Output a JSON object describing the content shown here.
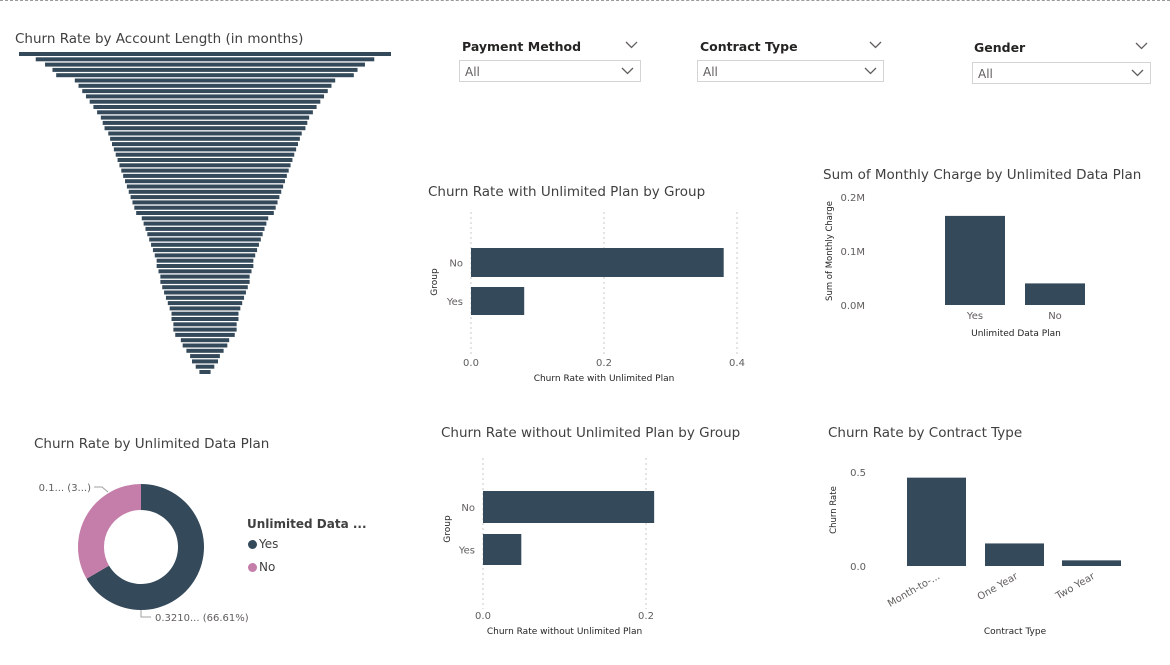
{
  "colors": {
    "bar": "#34495a",
    "yes": "#34495a",
    "no": "#c47ea9",
    "grid": "#c8c8c8",
    "axis_text": "#605e5c"
  },
  "filters": [
    {
      "title": "Payment Method",
      "value": "All"
    },
    {
      "title": "Contract Type",
      "value": "All"
    },
    {
      "title": "Gender",
      "value": "All"
    }
  ],
  "funnel": {
    "title": "Churn Rate by Account Length (in months)"
  },
  "chart_data": [
    {
      "id": "funnel",
      "type": "bar",
      "title": "Churn Rate by Account Length (in months)",
      "orientation": "horizontal-funnel",
      "values": [
        1.0,
        0.91,
        0.86,
        0.82,
        0.8,
        0.7,
        0.68,
        0.66,
        0.64,
        0.62,
        0.6,
        0.58,
        0.56,
        0.55,
        0.54,
        0.52,
        0.51,
        0.5,
        0.49,
        0.48,
        0.47,
        0.46,
        0.45,
        0.44,
        0.43,
        0.42,
        0.41,
        0.4,
        0.39,
        0.38,
        0.37,
        0.34,
        0.33,
        0.32,
        0.31,
        0.3,
        0.29,
        0.28,
        0.27,
        0.26,
        0.26,
        0.25,
        0.24,
        0.24,
        0.23,
        0.22,
        0.21,
        0.2,
        0.19,
        0.18,
        0.18,
        0.17,
        0.17,
        0.16,
        0.13,
        0.12,
        0.1,
        0.08,
        0.07,
        0.05,
        0.03
      ]
    },
    {
      "id": "unlimited",
      "type": "bar",
      "title": "Churn Rate with Unlimited Plan by Group",
      "orientation": "horizontal",
      "categories": [
        "No",
        "Yes"
      ],
      "values": [
        0.38,
        0.08
      ],
      "xlabel": "Churn Rate with Unlimited Plan",
      "ylabel": "Group",
      "xlim": [
        0,
        0.4
      ],
      "xticks": [
        "0.0",
        "0.2",
        "0.4"
      ],
      "grid": true
    },
    {
      "id": "monthly",
      "type": "bar",
      "title": "Sum of Monthly Charge by Unlimited Data Plan",
      "categories": [
        "Yes",
        "No"
      ],
      "values": [
        0.165,
        0.04
      ],
      "xlabel": "Unlimited Data Plan",
      "ylabel": "Sum of Monthly Charge",
      "ylim": [
        0,
        0.2
      ],
      "yticks": [
        "0.0M",
        "0.1M",
        "0.2M"
      ]
    },
    {
      "id": "donut",
      "type": "pie",
      "title": "Churn Rate by Unlimited Data Plan",
      "categories": [
        "Yes",
        "No"
      ],
      "values": [
        66.61,
        33.39
      ],
      "labels": [
        "0.3210... (66.61%)",
        "0.1... (3...)"
      ],
      "legend_title": "Unlimited Data ...",
      "legend": "right"
    },
    {
      "id": "without",
      "type": "bar",
      "title": "Churn Rate without Unlimited Plan by Group",
      "orientation": "horizontal",
      "categories": [
        "No",
        "Yes"
      ],
      "values": [
        0.21,
        0.047
      ],
      "xlabel": "Churn Rate without Unlimited Plan",
      "ylabel": "Group",
      "xlim": [
        0,
        0.2
      ],
      "xticks": [
        "0.0",
        "0.2"
      ],
      "grid": true
    },
    {
      "id": "contract",
      "type": "bar",
      "title": "Churn Rate by Contract Type",
      "categories": [
        "Month-to-...",
        "One Year",
        "Two Year"
      ],
      "values": [
        0.47,
        0.12,
        0.03
      ],
      "xlabel": "Contract Type",
      "ylabel": "Churn Rate",
      "ylim": [
        0,
        0.5
      ],
      "yticks": [
        "0.0",
        "0.5"
      ]
    }
  ]
}
